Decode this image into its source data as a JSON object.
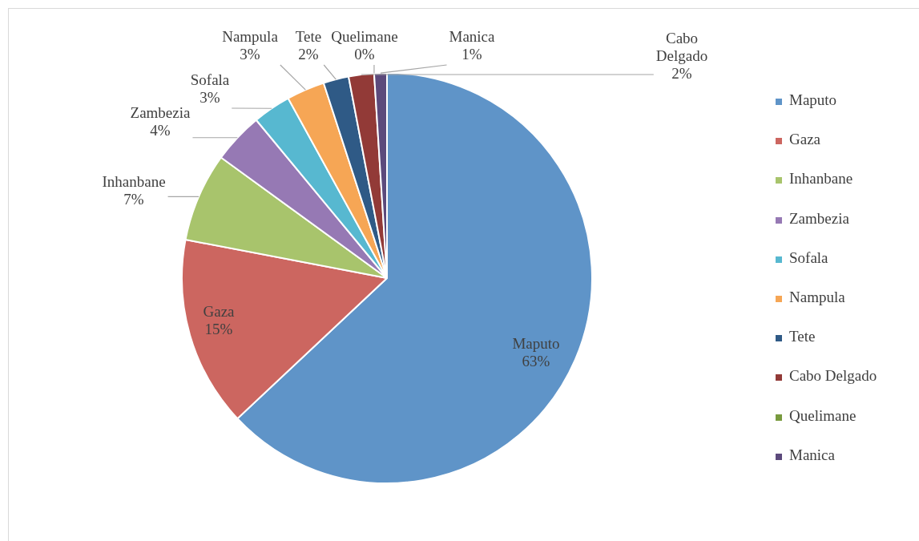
{
  "chart_data": {
    "type": "pie",
    "categories": [
      "Maputo",
      "Gaza",
      "Inhanbane",
      "Zambezia",
      "Sofala",
      "Nampula",
      "Tete",
      "Cabo Delgado",
      "Quelimane",
      "Manica"
    ],
    "values": [
      63,
      15,
      7,
      4,
      3,
      3,
      2,
      2,
      0,
      1
    ],
    "value_labels": [
      "63%",
      "15%",
      "7%",
      "4%",
      "3%",
      "3%",
      "2%",
      "2%",
      "0%",
      "1%"
    ],
    "colors": [
      "#5f94c8",
      "#cc6660",
      "#a8c46c",
      "#9679b4",
      "#57b8d0",
      "#f6a655",
      "#2f5a86",
      "#923a37",
      "#789a3e",
      "#5c4a7c"
    ],
    "legend": "right"
  }
}
